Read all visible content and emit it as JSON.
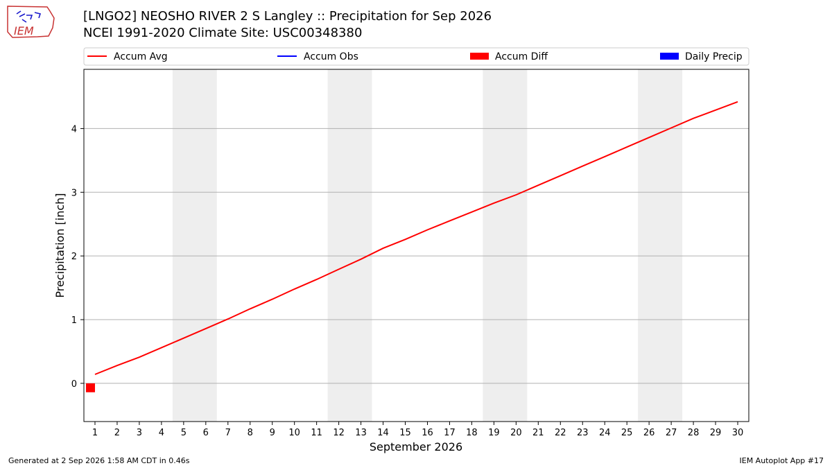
{
  "header": {
    "logo_text": "IEM",
    "title_line1": "[LNGO2] NEOSHO RIVER 2 S Langley :: Precipitation for Sep 2026",
    "title_line2": "NCEI 1991-2020 Climate Site: USC00348380"
  },
  "footer": {
    "generated": "Generated at 2 Sep 2026 1:58 AM CDT in 0.46s",
    "app": "IEM Autoplot App #17"
  },
  "colors": {
    "accum_avg": "#ff0000",
    "accum_obs": "#0000ff",
    "accum_diff": "#ff0000",
    "daily_precip": "#0000ff",
    "weekend_shade": "#eeeeee",
    "grid": "#b0b0b0"
  },
  "chart_data": {
    "type": "line",
    "xlabel": "September 2026",
    "ylabel": "Precipitation [inch]",
    "xlim": [
      0.5,
      30.5
    ],
    "ylim": [
      -0.6,
      4.93
    ],
    "xticks": [
      1,
      2,
      3,
      4,
      5,
      6,
      7,
      8,
      9,
      10,
      11,
      12,
      13,
      14,
      15,
      16,
      17,
      18,
      19,
      20,
      21,
      22,
      23,
      24,
      25,
      26,
      27,
      28,
      29,
      30
    ],
    "yticks": [
      0,
      1,
      2,
      3,
      4
    ],
    "grid": "horizontal",
    "legend": [
      {
        "label": "Accum Avg",
        "kind": "line",
        "color": "#ff0000"
      },
      {
        "label": "Accum Obs",
        "kind": "line",
        "color": "#0000ff"
      },
      {
        "label": "Accum Diff",
        "kind": "bar",
        "color": "#ff0000"
      },
      {
        "label": "Daily Precip",
        "kind": "bar",
        "color": "#0000ff"
      }
    ],
    "legend_position": "top",
    "weekend_shading": [
      [
        4.5,
        6.5
      ],
      [
        11.5,
        13.5
      ],
      [
        18.5,
        20.5
      ],
      [
        25.5,
        27.5
      ]
    ],
    "series": [
      {
        "name": "Accum Avg",
        "x": [
          1,
          2,
          3,
          4,
          5,
          6,
          7,
          8,
          9,
          10,
          11,
          12,
          13,
          14,
          15,
          16,
          17,
          18,
          19,
          20,
          21,
          22,
          23,
          24,
          25,
          26,
          27,
          28,
          29,
          30
        ],
        "values": [
          0.14,
          0.28,
          0.41,
          0.56,
          0.71,
          0.86,
          1.01,
          1.17,
          1.32,
          1.48,
          1.63,
          1.79,
          1.95,
          2.12,
          2.26,
          2.41,
          2.55,
          2.69,
          2.83,
          2.96,
          3.11,
          3.26,
          3.41,
          3.56,
          3.71,
          3.86,
          4.01,
          4.16,
          4.29,
          4.42
        ]
      },
      {
        "name": "Accum Diff",
        "x": [
          1
        ],
        "values": [
          -0.14
        ]
      }
    ]
  }
}
